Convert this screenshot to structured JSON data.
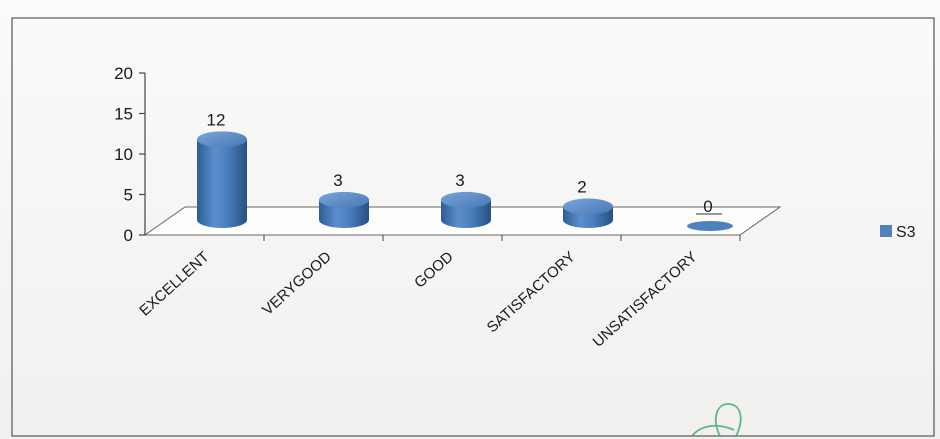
{
  "chart_data": {
    "type": "bar",
    "title": "",
    "xlabel": "",
    "ylabel": "",
    "categories": [
      "EXCELLENT",
      "VERYGOOD",
      "GOOD",
      "SATISFACTORY",
      "UNSATISFACTORY"
    ],
    "series": [
      {
        "name": "S3",
        "values": [
          12,
          3,
          3,
          2,
          0
        ],
        "color": "#4f81bd"
      }
    ],
    "ylim": [
      0,
      20
    ],
    "yticks": [
      0,
      5,
      10,
      15,
      20
    ],
    "data_labels": [
      "12",
      "3",
      "3",
      "2",
      "0"
    ],
    "legend_position": "right",
    "grid": false,
    "style": "3d-cylinder"
  }
}
